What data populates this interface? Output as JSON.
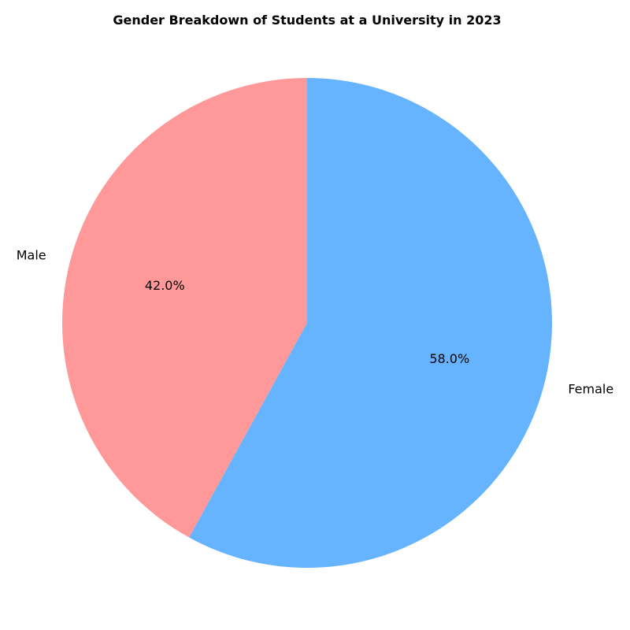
{
  "chart_data": {
    "type": "pie",
    "title": "Gender Breakdown of Students at a University in 2023",
    "categories": [
      "Male",
      "Female"
    ],
    "values": [
      42.0,
      58.0
    ],
    "pct_labels": [
      "42.0%",
      "58.0%"
    ],
    "colors": [
      "#ff9999",
      "#66b3ff"
    ],
    "start_angle": "top",
    "direction": "counterclockwise"
  }
}
